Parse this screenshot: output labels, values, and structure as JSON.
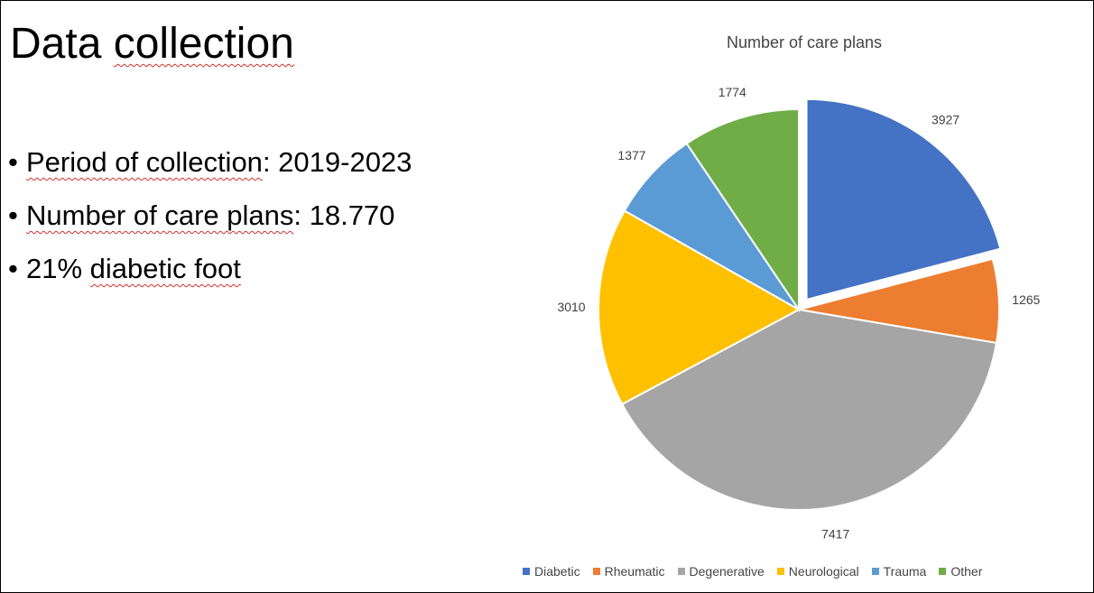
{
  "slide": {
    "title_word1": "Data",
    "title_word2": "collection",
    "bullets": [
      {
        "underlined": "Period of collection",
        "rest": ": 2019-2023"
      },
      {
        "underlined": "Number of care plans",
        "rest": ": 18.770"
      },
      {
        "prefix": "21% ",
        "underlined": "diabetic foot",
        "rest": ""
      }
    ]
  },
  "chart_data": {
    "type": "pie",
    "title": "Number of care plans",
    "categories": [
      "Diabetic",
      "Rheumatic",
      "Degenerative",
      "Neurological",
      "Trauma",
      "Other"
    ],
    "values": [
      3927,
      1265,
      7417,
      3010,
      1377,
      1774
    ],
    "colors": [
      "#4472c4",
      "#ed7d31",
      "#a5a5a5",
      "#ffc000",
      "#5b9bd5",
      "#70ad47"
    ],
    "exploded": [
      "Diabetic"
    ],
    "legend_position": "bottom",
    "start_angle_deg": 0,
    "direction": "clockwise"
  }
}
